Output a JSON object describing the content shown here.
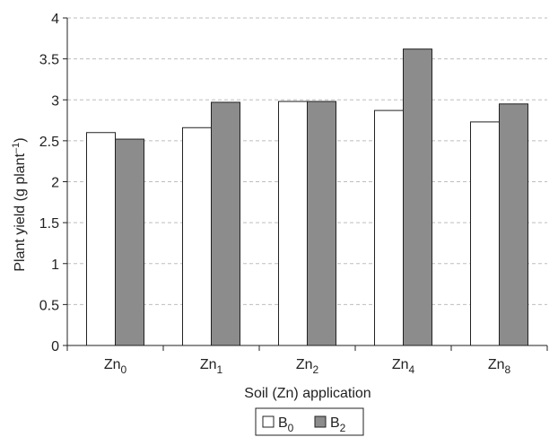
{
  "chart_data": {
    "type": "bar",
    "categories": [
      {
        "base": "Zn",
        "sub": "0"
      },
      {
        "base": "Zn",
        "sub": "1"
      },
      {
        "base": "Zn",
        "sub": "2"
      },
      {
        "base": "Zn",
        "sub": "4"
      },
      {
        "base": "Zn",
        "sub": "8"
      }
    ],
    "series": [
      {
        "name": "B",
        "name_sub": "0",
        "color": "#ffffff",
        "values": [
          2.6,
          2.66,
          2.98,
          2.87,
          2.73
        ]
      },
      {
        "name": "B",
        "name_sub": "2",
        "color": "#8c8c8c",
        "values": [
          2.52,
          2.97,
          2.98,
          3.62,
          2.95
        ]
      }
    ],
    "ylim": [
      0,
      4
    ],
    "yticks": [
      "0",
      "0.5",
      "1",
      "1.5",
      "2",
      "2.5",
      "3",
      "3.5",
      "4"
    ],
    "ylabel": {
      "text": "Plant yield (g plant",
      "sup": "–1",
      "close": ")"
    },
    "xlabel": "Soil (Zn) application",
    "grid": "horizontal dashed",
    "legend": "bottom-center"
  }
}
